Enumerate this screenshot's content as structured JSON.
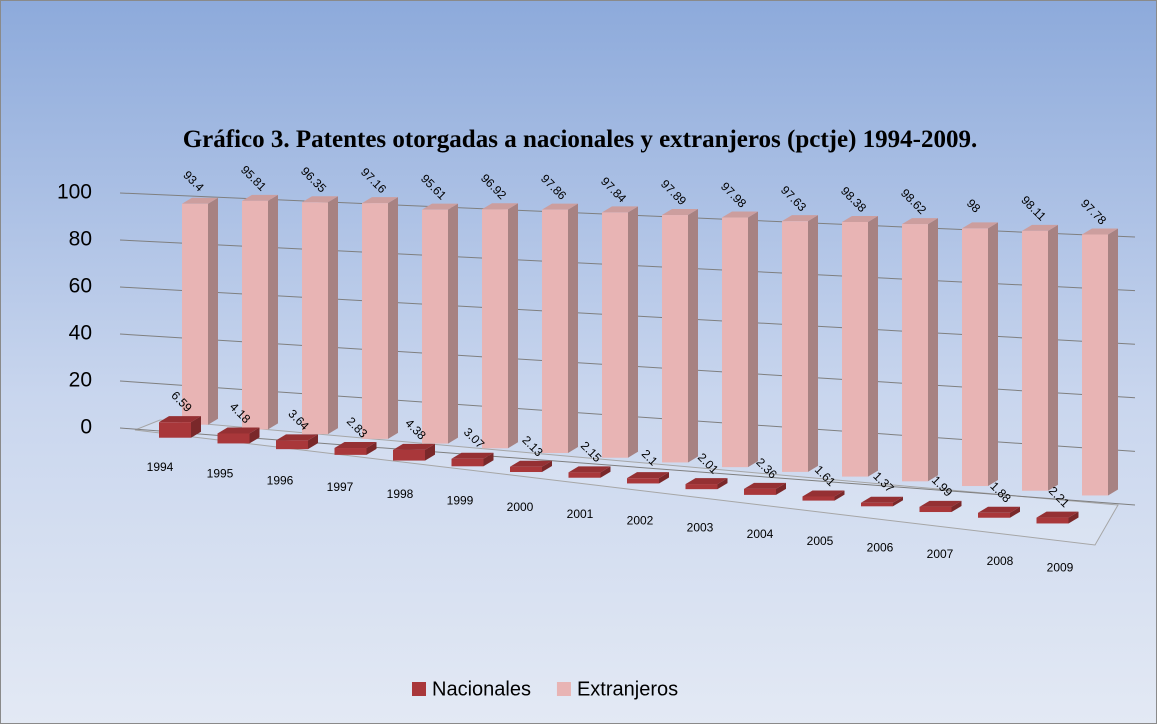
{
  "chart_data": {
    "type": "bar3d",
    "title": "Gráfico 3. Patentes otorgadas a nacionales y extranjeros (pctje) 1994-2009.",
    "categories": [
      "1994",
      "1995",
      "1996",
      "1997",
      "1998",
      "1999",
      "2000",
      "2001",
      "2002",
      "2003",
      "2004",
      "2005",
      "2006",
      "2007",
      "2008",
      "2009"
    ],
    "series": [
      {
        "name": "Nacionales",
        "color": "#a9373a",
        "values": [
          6.59,
          4.18,
          3.64,
          2.83,
          4.38,
          3.07,
          2.13,
          2.15,
          2.1,
          2.01,
          2.36,
          1.61,
          1.37,
          1.99,
          1.88,
          2.21
        ]
      },
      {
        "name": "Extranjeros",
        "color": "#e8b4b4",
        "values": [
          93.4,
          95.81,
          96.35,
          97.16,
          95.61,
          96.92,
          97.86,
          97.84,
          97.89,
          97.98,
          97.63,
          98.38,
          98.62,
          98,
          98.11,
          97.78
        ]
      }
    ],
    "ylim": [
      0,
      100
    ],
    "yticks": [
      0,
      20,
      40,
      60,
      80,
      100
    ],
    "grid": true,
    "legend": "bottom"
  }
}
